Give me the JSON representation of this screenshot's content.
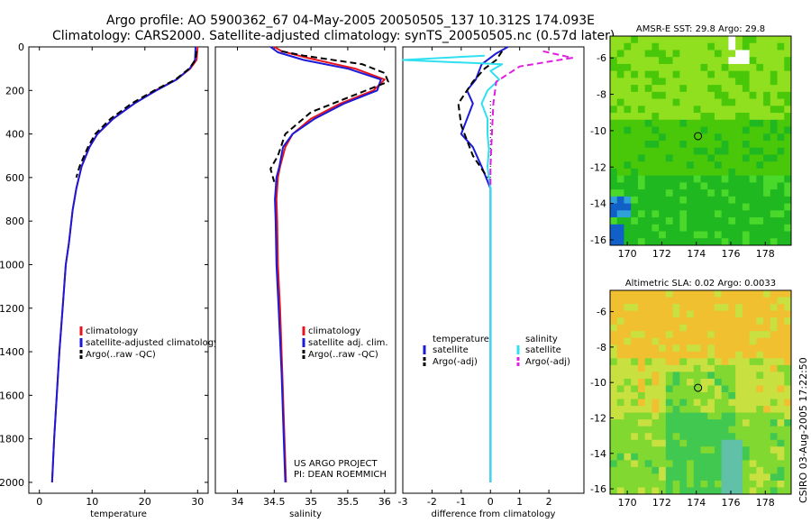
{
  "header": {
    "line1": "Argo profile: AO 5900362_67 04-May-2005 20050505_137 10.312S 174.093E",
    "line2": "Climatology: CARS2000. Satellite-adjusted climatology: synTS_20050505.nc (0.57d later)"
  },
  "side_text": "CSIRO 03-Aug-2005 17:22:50",
  "colors": {
    "red": "#e8141b",
    "blue": "#1a1ad8",
    "black": "#000000",
    "cyan": "#30e0f0",
    "magenta": "#e020e0"
  },
  "chart_data": [
    {
      "type": "line",
      "panel": "temperature",
      "xlabel": "temperature",
      "ylabel": "",
      "xlim": [
        -2,
        32
      ],
      "ylim": [
        0,
        2050
      ],
      "x_ticks": [
        0,
        10,
        20,
        30
      ],
      "y_ticks": [
        0,
        200,
        400,
        600,
        800,
        1000,
        1200,
        1400,
        1600,
        1800,
        2000
      ],
      "legend": [
        "climatology",
        "satellite-adjusted climatology",
        "Argo(..raw -QC)"
      ],
      "series": [
        {
          "name": "climatology",
          "color": "red",
          "dash": false,
          "points": [
            [
              30.0,
              0
            ],
            [
              29.8,
              60
            ],
            [
              28.6,
              100
            ],
            [
              26.0,
              150
            ],
            [
              22.0,
              200
            ],
            [
              18.0,
              260
            ],
            [
              14.0,
              330
            ],
            [
              11.0,
              400
            ],
            [
              9.5,
              460
            ],
            [
              8.0,
              550
            ],
            [
              7.0,
              650
            ],
            [
              6.3,
              750
            ],
            [
              5.6,
              900
            ],
            [
              5.0,
              1000
            ],
            [
              4.4,
              1200
            ],
            [
              3.8,
              1400
            ],
            [
              3.3,
              1600
            ],
            [
              2.8,
              1800
            ],
            [
              2.4,
              2000
            ]
          ]
        },
        {
          "name": "satellite-adjusted climatology",
          "color": "blue",
          "dash": false,
          "points": [
            [
              29.6,
              0
            ],
            [
              29.5,
              60
            ],
            [
              28.5,
              100
            ],
            [
              26.0,
              150
            ],
            [
              22.2,
              200
            ],
            [
              18.0,
              260
            ],
            [
              14.0,
              330
            ],
            [
              11.0,
              400
            ],
            [
              9.5,
              460
            ],
            [
              8.0,
              550
            ],
            [
              7.0,
              650
            ],
            [
              6.3,
              750
            ],
            [
              5.6,
              900
            ],
            [
              5.0,
              1000
            ],
            [
              4.4,
              1200
            ],
            [
              3.8,
              1400
            ],
            [
              3.3,
              1600
            ],
            [
              2.8,
              1800
            ],
            [
              2.4,
              2000
            ]
          ]
        },
        {
          "name": "Argo(..raw -QC)",
          "color": "black",
          "dash": true,
          "points": [
            [
              29.8,
              20
            ],
            [
              29.6,
              60
            ],
            [
              28.4,
              100
            ],
            [
              25.8,
              150
            ],
            [
              21.8,
              200
            ],
            [
              17.5,
              260
            ],
            [
              13.5,
              330
            ],
            [
              10.6,
              400
            ],
            [
              9.2,
              460
            ],
            [
              7.6,
              550
            ],
            [
              7.0,
              600
            ]
          ]
        }
      ]
    },
    {
      "type": "line",
      "panel": "salinity",
      "xlabel": "salinity",
      "ylabel": "",
      "xlim": [
        33.7,
        36.15
      ],
      "ylim": [
        0,
        2050
      ],
      "x_ticks": [
        34,
        34.5,
        35,
        35.5,
        36
      ],
      "y_ticks": [],
      "legend": [
        "climatology",
        "satellite adj. clim.",
        "Argo(..raw -QC)"
      ],
      "annotation_lines": [
        "US ARGO PROJECT",
        "PI: DEAN ROEMMICH"
      ],
      "series": [
        {
          "name": "climatology",
          "color": "red",
          "dash": false,
          "points": [
            [
              34.5,
              0
            ],
            [
              34.6,
              20
            ],
            [
              34.95,
              50
            ],
            [
              35.6,
              100
            ],
            [
              36.0,
              150
            ],
            [
              35.85,
              200
            ],
            [
              35.4,
              260
            ],
            [
              35.0,
              330
            ],
            [
              34.75,
              400
            ],
            [
              34.65,
              460
            ],
            [
              34.58,
              550
            ],
            [
              34.55,
              600
            ],
            [
              34.53,
              700
            ],
            [
              34.54,
              800
            ],
            [
              34.55,
              1000
            ],
            [
              34.58,
              1200
            ],
            [
              34.61,
              1500
            ],
            [
              34.64,
              1800
            ],
            [
              34.66,
              2000
            ]
          ]
        },
        {
          "name": "satellite adj. clim.",
          "color": "blue",
          "dash": false,
          "points": [
            [
              34.45,
              0
            ],
            [
              34.55,
              25
            ],
            [
              34.9,
              60
            ],
            [
              35.5,
              100
            ],
            [
              35.95,
              150
            ],
            [
              35.9,
              200
            ],
            [
              35.45,
              260
            ],
            [
              35.05,
              330
            ],
            [
              34.75,
              400
            ],
            [
              34.62,
              460
            ],
            [
              34.57,
              550
            ],
            [
              34.53,
              600
            ],
            [
              34.51,
              700
            ],
            [
              34.52,
              800
            ],
            [
              34.53,
              1000
            ],
            [
              34.56,
              1200
            ],
            [
              34.6,
              1500
            ],
            [
              34.63,
              1800
            ],
            [
              34.65,
              2000
            ]
          ]
        },
        {
          "name": "Argo(..raw -QC)",
          "color": "black",
          "dash": true,
          "points": [
            [
              34.6,
              20
            ],
            [
              34.9,
              40
            ],
            [
              35.7,
              80
            ],
            [
              36.0,
              120
            ],
            [
              36.05,
              160
            ],
            [
              35.6,
              220
            ],
            [
              35.0,
              300
            ],
            [
              34.65,
              400
            ],
            [
              34.55,
              500
            ],
            [
              34.45,
              560
            ],
            [
              34.5,
              620
            ]
          ]
        }
      ]
    },
    {
      "type": "line",
      "panel": "difference",
      "xlabel": "difference from climatology",
      "ylabel": "",
      "xlim": [
        -3,
        3.2
      ],
      "ylim": [
        0,
        2050
      ],
      "x_ticks": [
        -3,
        -2,
        -1,
        0,
        1,
        2
      ],
      "y_ticks": [],
      "legend_left_header": "temperature",
      "legend_left": [
        "satellite",
        "Argo(-adj)"
      ],
      "legend_right_header": "salinity",
      "legend_right": [
        "satellite",
        "Argo(-adj)"
      ],
      "series": [
        {
          "name": "temperature satellite",
          "color": "blue",
          "dash": false,
          "points": [
            [
              0.6,
              0
            ],
            [
              0.2,
              30
            ],
            [
              -0.3,
              80
            ],
            [
              -0.5,
              150
            ],
            [
              -0.8,
              200
            ],
            [
              -0.6,
              260
            ],
            [
              -0.8,
              330
            ],
            [
              -1.0,
              400
            ],
            [
              -0.6,
              460
            ],
            [
              -0.3,
              550
            ],
            [
              0.0,
              650
            ],
            [
              0.0,
              2000
            ]
          ]
        },
        {
          "name": "temperature Argo(-adj)",
          "color": "black",
          "dash": true,
          "points": [
            [
              0.4,
              20
            ],
            [
              0.2,
              60
            ],
            [
              -0.2,
              100
            ],
            [
              -0.6,
              160
            ],
            [
              -1.1,
              260
            ],
            [
              -1.0,
              360
            ],
            [
              -0.8,
              430
            ],
            [
              -0.6,
              500
            ],
            [
              -0.3,
              560
            ],
            [
              -0.1,
              600
            ]
          ]
        },
        {
          "name": "salinity satellite",
          "color": "cyan",
          "dash": false,
          "points": [
            [
              -0.2,
              40
            ],
            [
              -3.0,
              60
            ],
            [
              0.4,
              80
            ],
            [
              0.0,
              110
            ],
            [
              0.3,
              150
            ],
            [
              -0.1,
              200
            ],
            [
              -0.3,
              260
            ],
            [
              -0.1,
              330
            ],
            [
              -0.1,
              400
            ],
            [
              -0.05,
              470
            ],
            [
              -0.1,
              550
            ],
            [
              0.0,
              650
            ],
            [
              0.0,
              2000
            ]
          ]
        },
        {
          "name": "salinity Argo(-adj)",
          "color": "magenta",
          "dash": true,
          "points": [
            [
              1.8,
              20
            ],
            [
              2.8,
              50
            ],
            [
              1.0,
              90
            ],
            [
              0.2,
              160
            ],
            [
              0.1,
              260
            ],
            [
              0.05,
              400
            ],
            [
              0.0,
              550
            ],
            [
              0.0,
              650
            ]
          ]
        }
      ]
    },
    {
      "type": "heatmap",
      "panel": "sst_map",
      "title": "AMSR-E SST: 29.8 Argo: 29.8",
      "xlim": [
        169,
        179.5
      ],
      "ylim": [
        -16.3,
        -4.8
      ],
      "x_ticks": [
        170,
        172,
        174,
        176,
        178
      ],
      "y_ticks": [
        -6,
        -8,
        -10,
        -12,
        -14,
        -16
      ],
      "x_tick_labels": [
        "170",
        "172",
        "174",
        "176",
        "178"
      ],
      "y_tick_labels": [
        "-6",
        "-8",
        "-10",
        "-12",
        "-14",
        "-16"
      ],
      "marker": [
        174.1,
        -10.3
      ],
      "palette": [
        "#90e020",
        "#48c808",
        "#20b820",
        "#4ad82a"
      ]
    },
    {
      "type": "heatmap",
      "panel": "sla_map",
      "title": "Altimetric SLA: 0.02 Argo: 0.0033",
      "xlim": [
        169,
        179.5
      ],
      "ylim": [
        -16.3,
        -4.8
      ],
      "x_ticks": [
        170,
        172,
        174,
        176,
        178
      ],
      "y_ticks": [
        -6,
        -8,
        -10,
        -12,
        -14,
        -16
      ],
      "x_tick_labels": [
        "170",
        "172",
        "174",
        "176",
        "178"
      ],
      "y_tick_labels": [
        "-6",
        "-8",
        "-10",
        "-12",
        "-14",
        "-16"
      ],
      "marker": [
        174.1,
        -10.3
      ],
      "palette": [
        "#f0c030",
        "#c8e040",
        "#80d830",
        "#40c850"
      ]
    }
  ]
}
